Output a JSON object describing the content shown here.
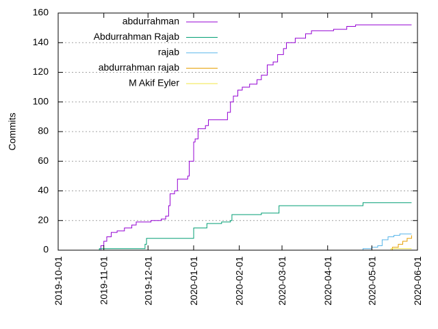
{
  "chart_data": {
    "type": "line",
    "title": "",
    "xlabel": "",
    "ylabel": "Commits",
    "x_type": "date",
    "xlim": [
      "2019-10-01",
      "2020-06-01"
    ],
    "ylim": [
      0,
      160
    ],
    "x_ticks": [
      "2019-10-01",
      "2019-11-01",
      "2019-12-01",
      "2020-01-01",
      "2020-02-01",
      "2020-03-01",
      "2020-04-01",
      "2020-05-01",
      "2020-06-01"
    ],
    "y_ticks": [
      "0",
      "20",
      "40",
      "60",
      "80",
      "100",
      "120",
      "140",
      "160"
    ],
    "grid": "horizontal dotted",
    "legend_position": "top-left",
    "series": [
      {
        "name": "abdurrahman",
        "color": "#9400d3",
        "points": [
          [
            "2019-10-28",
            0
          ],
          [
            "2019-10-30",
            3
          ],
          [
            "2019-11-01",
            6
          ],
          [
            "2019-11-03",
            9
          ],
          [
            "2019-11-06",
            12
          ],
          [
            "2019-11-10",
            13
          ],
          [
            "2019-11-15",
            15
          ],
          [
            "2019-11-20",
            17
          ],
          [
            "2019-11-23",
            19
          ],
          [
            "2019-11-28",
            19
          ],
          [
            "2019-12-03",
            20
          ],
          [
            "2019-12-10",
            21
          ],
          [
            "2019-12-13",
            23
          ],
          [
            "2019-12-15",
            30
          ],
          [
            "2019-12-16",
            38
          ],
          [
            "2019-12-19",
            40
          ],
          [
            "2019-12-21",
            48
          ],
          [
            "2019-12-28",
            50
          ],
          [
            "2019-12-29",
            60
          ],
          [
            "2020-01-01",
            73
          ],
          [
            "2020-01-02",
            75
          ],
          [
            "2020-01-04",
            82
          ],
          [
            "2020-01-09",
            84
          ],
          [
            "2020-01-11",
            88
          ],
          [
            "2020-01-22",
            88
          ],
          [
            "2020-01-24",
            93
          ],
          [
            "2020-01-26",
            100
          ],
          [
            "2020-01-28",
            104
          ],
          [
            "2020-01-31",
            108
          ],
          [
            "2020-02-03",
            110
          ],
          [
            "2020-02-08",
            112
          ],
          [
            "2020-02-13",
            115
          ],
          [
            "2020-02-16",
            118
          ],
          [
            "2020-02-20",
            125
          ],
          [
            "2020-02-24",
            127
          ],
          [
            "2020-02-27",
            132
          ],
          [
            "2020-03-02",
            136
          ],
          [
            "2020-03-04",
            140
          ],
          [
            "2020-03-10",
            143
          ],
          [
            "2020-03-17",
            146
          ],
          [
            "2020-03-21",
            148
          ],
          [
            "2020-04-05",
            149
          ],
          [
            "2020-04-14",
            151
          ],
          [
            "2020-04-20",
            152
          ],
          [
            "2020-05-28",
            152
          ]
        ]
      },
      {
        "name": "Abdurrahman Rajab",
        "color": "#009e73",
        "points": [
          [
            "2019-10-28",
            0
          ],
          [
            "2019-10-29",
            1
          ],
          [
            "2019-11-27",
            1
          ],
          [
            "2019-11-29",
            4
          ],
          [
            "2019-11-30",
            8
          ],
          [
            "2019-12-31",
            8
          ],
          [
            "2020-01-01",
            15
          ],
          [
            "2020-01-09",
            15
          ],
          [
            "2020-01-10",
            18
          ],
          [
            "2020-01-20",
            19
          ],
          [
            "2020-01-26",
            20
          ],
          [
            "2020-01-27",
            24
          ],
          [
            "2020-02-15",
            24
          ],
          [
            "2020-02-16",
            25
          ],
          [
            "2020-02-23",
            25
          ],
          [
            "2020-02-28",
            30
          ],
          [
            "2020-04-24",
            30
          ],
          [
            "2020-04-25",
            32
          ],
          [
            "2020-05-28",
            32
          ]
        ]
      },
      {
        "name": "rajab",
        "color": "#56b4e9",
        "points": [
          [
            "2020-04-22",
            0
          ],
          [
            "2020-04-25",
            1
          ],
          [
            "2020-05-01",
            2
          ],
          [
            "2020-05-05",
            3
          ],
          [
            "2020-05-08",
            7
          ],
          [
            "2020-05-12",
            9
          ],
          [
            "2020-05-16",
            10
          ],
          [
            "2020-05-20",
            11
          ],
          [
            "2020-05-28",
            11
          ]
        ]
      },
      {
        "name": "abdurrahman rajab",
        "color": "#e69f00",
        "points": [
          [
            "2020-05-08",
            0
          ],
          [
            "2020-05-15",
            2
          ],
          [
            "2020-05-19",
            4
          ],
          [
            "2020-05-22",
            6
          ],
          [
            "2020-05-25",
            8
          ],
          [
            "2020-05-28",
            10
          ]
        ]
      },
      {
        "name": "M Akif Eyler",
        "color": "#f0e442",
        "points": [
          [
            "2020-05-10",
            0
          ],
          [
            "2020-05-14",
            1
          ],
          [
            "2020-05-28",
            1
          ]
        ]
      }
    ]
  }
}
